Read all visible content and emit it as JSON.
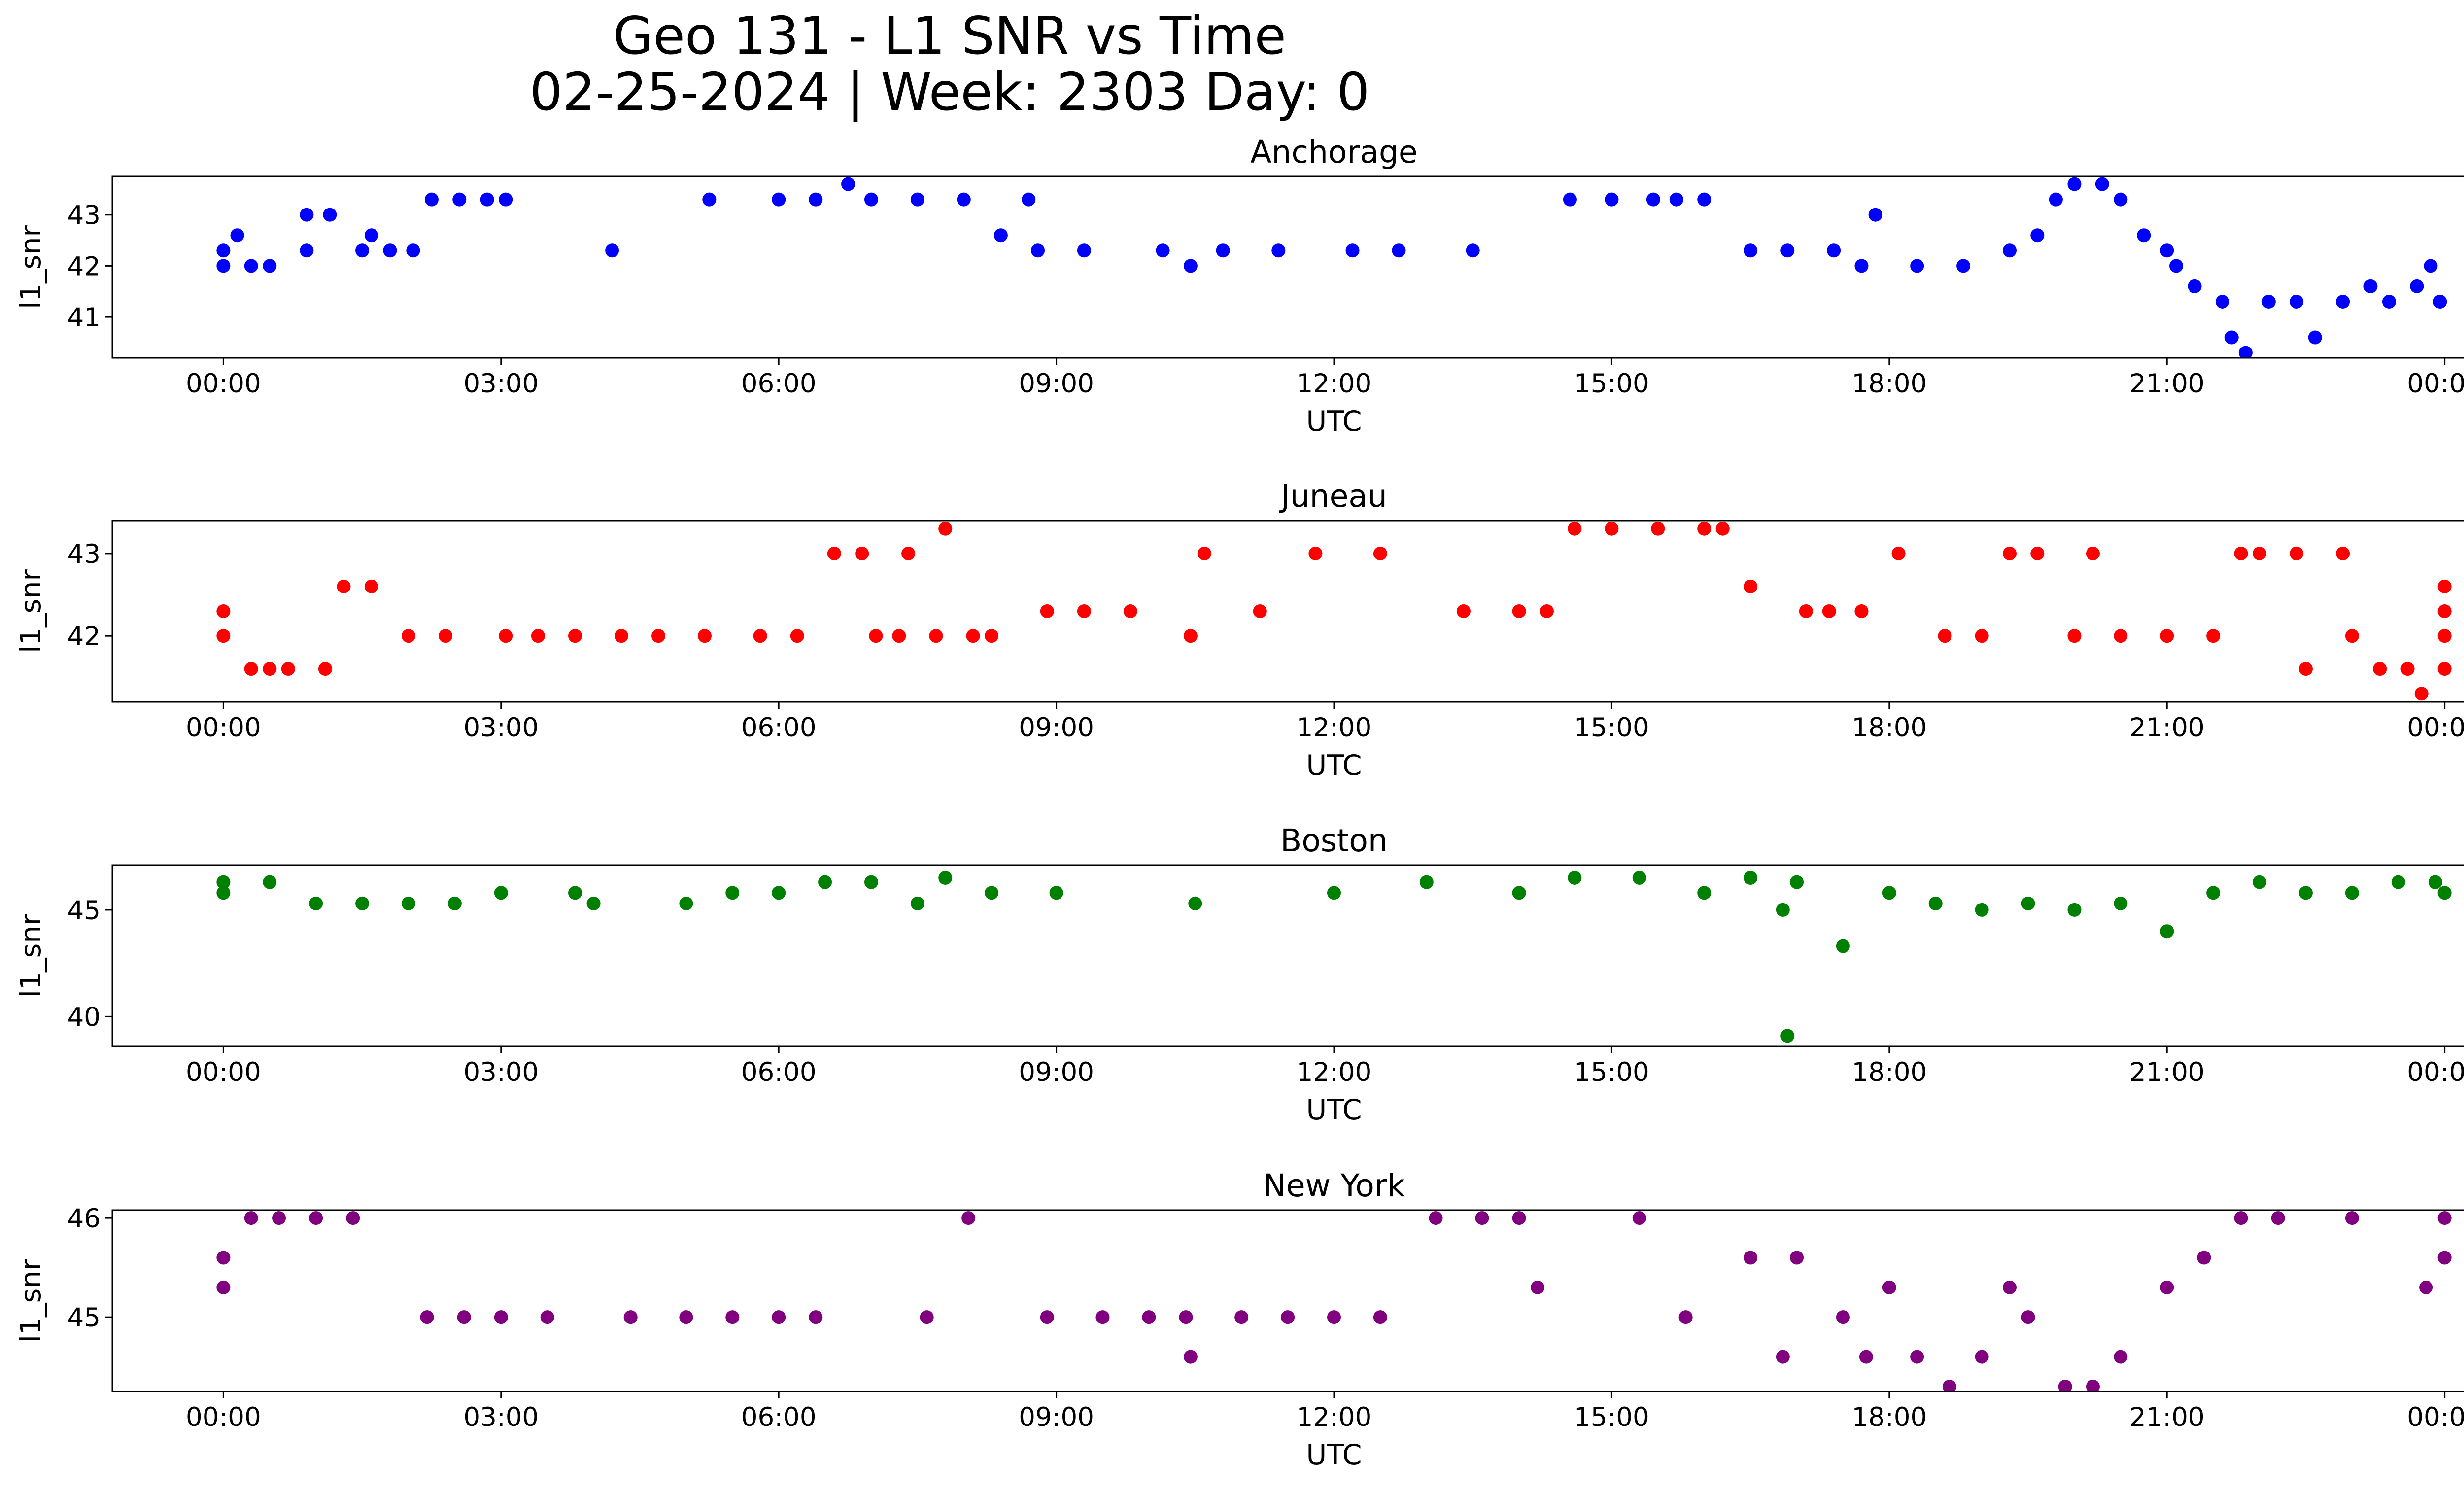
{
  "figure": {
    "title_line1": "Geo 131 - L1 SNR vs Time",
    "title_line2": "02-25-2024 | Week: 2303 Day: 0"
  },
  "chart_data": [
    {
      "type": "scatter",
      "title": "Anchorage",
      "xlabel": "UTC",
      "ylabel": "l1_snr",
      "color": "#0000ff",
      "x_ticks": [
        "00:00",
        "03:00",
        "06:00",
        "09:00",
        "12:00",
        "15:00",
        "18:00",
        "21:00",
        "00:00"
      ],
      "xlim_hours": [
        -1.2,
        25.2
      ],
      "y_ticks": [
        41,
        42,
        43
      ],
      "ylim": [
        40.2,
        43.75
      ],
      "series": [
        {
          "values": [
            [
              0.0,
              42.0
            ],
            [
              0.0,
              42.3
            ],
            [
              0.3,
              42.0
            ],
            [
              0.5,
              42.0
            ],
            [
              0.15,
              42.6
            ],
            [
              0.9,
              42.3
            ],
            [
              0.9,
              43.0
            ],
            [
              1.15,
              43.0
            ],
            [
              1.5,
              42.3
            ],
            [
              1.6,
              42.6
            ],
            [
              1.8,
              42.3
            ],
            [
              2.05,
              42.3
            ],
            [
              2.25,
              43.3
            ],
            [
              2.55,
              43.3
            ],
            [
              2.85,
              43.3
            ],
            [
              3.05,
              43.3
            ],
            [
              4.2,
              42.3
            ],
            [
              5.25,
              43.3
            ],
            [
              6.0,
              43.3
            ],
            [
              6.4,
              43.3
            ],
            [
              6.75,
              43.6
            ],
            [
              7.0,
              43.3
            ],
            [
              7.5,
              43.3
            ],
            [
              8.0,
              43.3
            ],
            [
              8.4,
              42.6
            ],
            [
              8.7,
              43.3
            ],
            [
              8.8,
              42.3
            ],
            [
              9.3,
              42.3
            ],
            [
              10.15,
              42.3
            ],
            [
              10.45,
              42.0
            ],
            [
              10.8,
              42.3
            ],
            [
              11.4,
              42.3
            ],
            [
              12.2,
              42.3
            ],
            [
              12.7,
              42.3
            ],
            [
              13.5,
              42.3
            ],
            [
              14.55,
              43.3
            ],
            [
              15.0,
              43.3
            ],
            [
              15.45,
              43.3
            ],
            [
              15.7,
              43.3
            ],
            [
              16.0,
              43.3
            ],
            [
              16.5,
              42.3
            ],
            [
              16.9,
              42.3
            ],
            [
              17.4,
              42.3
            ],
            [
              17.7,
              42.0
            ],
            [
              17.85,
              43.0
            ],
            [
              18.3,
              42.0
            ],
            [
              18.8,
              42.0
            ],
            [
              19.3,
              42.3
            ],
            [
              19.6,
              42.6
            ],
            [
              19.8,
              43.3
            ],
            [
              20.0,
              43.6
            ],
            [
              20.3,
              43.6
            ],
            [
              20.5,
              43.3
            ],
            [
              20.75,
              42.6
            ],
            [
              21.0,
              42.3
            ],
            [
              21.1,
              42.0
            ],
            [
              21.3,
              41.6
            ],
            [
              21.6,
              41.3
            ],
            [
              21.7,
              40.6
            ],
            [
              21.85,
              40.3
            ],
            [
              22.1,
              41.3
            ],
            [
              22.4,
              41.3
            ],
            [
              22.6,
              40.6
            ],
            [
              22.9,
              41.3
            ],
            [
              23.2,
              41.6
            ],
            [
              23.4,
              41.3
            ],
            [
              23.7,
              41.6
            ],
            [
              23.85,
              42.0
            ],
            [
              23.95,
              41.3
            ]
          ]
        }
      ]
    },
    {
      "type": "scatter",
      "title": "Juneau",
      "xlabel": "UTC",
      "ylabel": "l1_snr",
      "color": "#ff0000",
      "x_ticks": [
        "00:00",
        "03:00",
        "06:00",
        "09:00",
        "12:00",
        "15:00",
        "18:00",
        "21:00",
        "00:00"
      ],
      "xlim_hours": [
        -1.2,
        25.2
      ],
      "y_ticks": [
        42,
        43
      ],
      "ylim": [
        41.2,
        43.4
      ],
      "series": [
        {
          "values": [
            [
              0.0,
              42.0
            ],
            [
              0.0,
              42.3
            ],
            [
              0.3,
              41.6
            ],
            [
              0.5,
              41.6
            ],
            [
              0.7,
              41.6
            ],
            [
              1.1,
              41.6
            ],
            [
              1.3,
              42.6
            ],
            [
              1.6,
              42.6
            ],
            [
              2.0,
              42.0
            ],
            [
              2.4,
              42.0
            ],
            [
              3.05,
              42.0
            ],
            [
              3.4,
              42.0
            ],
            [
              3.8,
              42.0
            ],
            [
              4.3,
              42.0
            ],
            [
              4.7,
              42.0
            ],
            [
              5.2,
              42.0
            ],
            [
              5.8,
              42.0
            ],
            [
              6.2,
              42.0
            ],
            [
              6.6,
              43.0
            ],
            [
              6.9,
              43.0
            ],
            [
              7.05,
              42.0
            ],
            [
              7.3,
              42.0
            ],
            [
              7.4,
              43.0
            ],
            [
              7.7,
              42.0
            ],
            [
              7.8,
              43.3
            ],
            [
              8.1,
              42.0
            ],
            [
              8.3,
              42.0
            ],
            [
              8.9,
              42.3
            ],
            [
              9.3,
              42.3
            ],
            [
              9.8,
              42.3
            ],
            [
              10.45,
              42.0
            ],
            [
              10.6,
              43.0
            ],
            [
              11.2,
              42.3
            ],
            [
              11.8,
              43.0
            ],
            [
              12.5,
              43.0
            ],
            [
              13.4,
              42.3
            ],
            [
              14.0,
              42.3
            ],
            [
              14.3,
              42.3
            ],
            [
              14.6,
              43.3
            ],
            [
              15.0,
              43.3
            ],
            [
              15.5,
              43.3
            ],
            [
              16.0,
              43.3
            ],
            [
              16.2,
              43.3
            ],
            [
              16.5,
              42.6
            ],
            [
              17.1,
              42.3
            ],
            [
              17.35,
              42.3
            ],
            [
              17.7,
              42.3
            ],
            [
              18.1,
              43.0
            ],
            [
              18.6,
              42.0
            ],
            [
              19.0,
              42.0
            ],
            [
              19.3,
              43.0
            ],
            [
              19.6,
              43.0
            ],
            [
              20.0,
              42.0
            ],
            [
              20.2,
              43.0
            ],
            [
              20.5,
              42.0
            ],
            [
              21.0,
              42.0
            ],
            [
              21.5,
              42.0
            ],
            [
              21.8,
              43.0
            ],
            [
              22.0,
              43.0
            ],
            [
              22.4,
              43.0
            ],
            [
              22.5,
              41.6
            ],
            [
              22.9,
              43.0
            ],
            [
              23.0,
              42.0
            ],
            [
              23.3,
              41.6
            ],
            [
              23.6,
              41.6
            ],
            [
              23.75,
              41.3
            ],
            [
              24.0,
              41.6
            ],
            [
              24.0,
              42.0
            ],
            [
              24.0,
              42.3
            ],
            [
              24.0,
              42.6
            ]
          ]
        }
      ]
    },
    {
      "type": "scatter",
      "title": "Boston",
      "xlabel": "UTC",
      "ylabel": "l1_snr",
      "color": "#008000",
      "x_ticks": [
        "00:00",
        "03:00",
        "06:00",
        "09:00",
        "12:00",
        "15:00",
        "18:00",
        "21:00",
        "00:00"
      ],
      "xlim_hours": [
        -1.2,
        25.2
      ],
      "y_ticks": [
        40,
        45
      ],
      "ylim": [
        38.6,
        47.1
      ],
      "series": [
        {
          "values": [
            [
              0.0,
              45.8
            ],
            [
              0.0,
              46.3
            ],
            [
              0.5,
              46.3
            ],
            [
              1.0,
              45.3
            ],
            [
              1.5,
              45.3
            ],
            [
              2.0,
              45.3
            ],
            [
              2.5,
              45.3
            ],
            [
              3.0,
              45.8
            ],
            [
              3.8,
              45.8
            ],
            [
              4.0,
              45.3
            ],
            [
              5.0,
              45.3
            ],
            [
              5.5,
              45.8
            ],
            [
              6.0,
              45.8
            ],
            [
              6.5,
              46.3
            ],
            [
              7.0,
              46.3
            ],
            [
              7.5,
              45.3
            ],
            [
              7.8,
              46.5
            ],
            [
              8.3,
              45.8
            ],
            [
              9.0,
              45.8
            ],
            [
              10.5,
              45.3
            ],
            [
              12.0,
              45.8
            ],
            [
              13.0,
              46.3
            ],
            [
              14.0,
              45.8
            ],
            [
              14.6,
              46.5
            ],
            [
              15.3,
              46.5
            ],
            [
              16.0,
              45.8
            ],
            [
              16.5,
              46.5
            ],
            [
              16.85,
              45.0
            ],
            [
              16.9,
              39.1
            ],
            [
              17.0,
              46.3
            ],
            [
              17.5,
              43.3
            ],
            [
              18.0,
              45.8
            ],
            [
              18.5,
              45.3
            ],
            [
              19.0,
              45.0
            ],
            [
              19.5,
              45.3
            ],
            [
              20.0,
              45.0
            ],
            [
              20.5,
              45.3
            ],
            [
              21.0,
              44.0
            ],
            [
              21.5,
              45.8
            ],
            [
              22.0,
              46.3
            ],
            [
              22.5,
              45.8
            ],
            [
              23.0,
              45.8
            ],
            [
              23.5,
              46.3
            ],
            [
              23.9,
              46.3
            ],
            [
              24.0,
              45.8
            ]
          ]
        }
      ]
    },
    {
      "type": "scatter",
      "title": "New York",
      "xlabel": "UTC",
      "ylabel": "l1_snr",
      "color": "#800080",
      "x_ticks": [
        "00:00",
        "03:00",
        "06:00",
        "09:00",
        "12:00",
        "15:00",
        "18:00",
        "21:00",
        "00:00"
      ],
      "xlim_hours": [
        -1.2,
        25.2
      ],
      "y_ticks": [
        45,
        46
      ],
      "ylim": [
        44.25,
        46.08
      ],
      "series": [
        {
          "values": [
            [
              0.0,
              45.3
            ],
            [
              0.0,
              45.6
            ],
            [
              0.3,
              46.0
            ],
            [
              0.6,
              46.0
            ],
            [
              1.0,
              46.0
            ],
            [
              1.4,
              46.0
            ],
            [
              2.2,
              45.0
            ],
            [
              2.6,
              45.0
            ],
            [
              3.0,
              45.0
            ],
            [
              3.5,
              45.0
            ],
            [
              4.4,
              45.0
            ],
            [
              5.0,
              45.0
            ],
            [
              5.5,
              45.0
            ],
            [
              6.0,
              45.0
            ],
            [
              6.4,
              45.0
            ],
            [
              7.6,
              45.0
            ],
            [
              8.05,
              46.0
            ],
            [
              8.9,
              45.0
            ],
            [
              9.5,
              45.0
            ],
            [
              10.0,
              45.0
            ],
            [
              10.4,
              45.0
            ],
            [
              10.45,
              44.6
            ],
            [
              11.0,
              45.0
            ],
            [
              11.5,
              45.0
            ],
            [
              12.0,
              45.0
            ],
            [
              12.5,
              45.0
            ],
            [
              13.1,
              46.0
            ],
            [
              13.6,
              46.0
            ],
            [
              14.0,
              46.0
            ],
            [
              14.2,
              45.3
            ],
            [
              15.3,
              46.0
            ],
            [
              15.8,
              45.0
            ],
            [
              16.5,
              45.6
            ],
            [
              16.85,
              44.6
            ],
            [
              17.0,
              45.6
            ],
            [
              17.5,
              45.0
            ],
            [
              17.75,
              44.6
            ],
            [
              18.0,
              45.3
            ],
            [
              18.3,
              44.6
            ],
            [
              18.65,
              44.3
            ],
            [
              19.0,
              44.6
            ],
            [
              19.3,
              45.3
            ],
            [
              19.5,
              45.0
            ],
            [
              19.9,
              44.3
            ],
            [
              20.2,
              44.3
            ],
            [
              20.5,
              44.6
            ],
            [
              21.0,
              45.3
            ],
            [
              21.4,
              45.6
            ],
            [
              21.8,
              46.0
            ],
            [
              22.2,
              46.0
            ],
            [
              23.0,
              46.0
            ],
            [
              23.8,
              45.3
            ],
            [
              24.0,
              45.6
            ],
            [
              24.0,
              46.0
            ]
          ]
        }
      ]
    }
  ]
}
